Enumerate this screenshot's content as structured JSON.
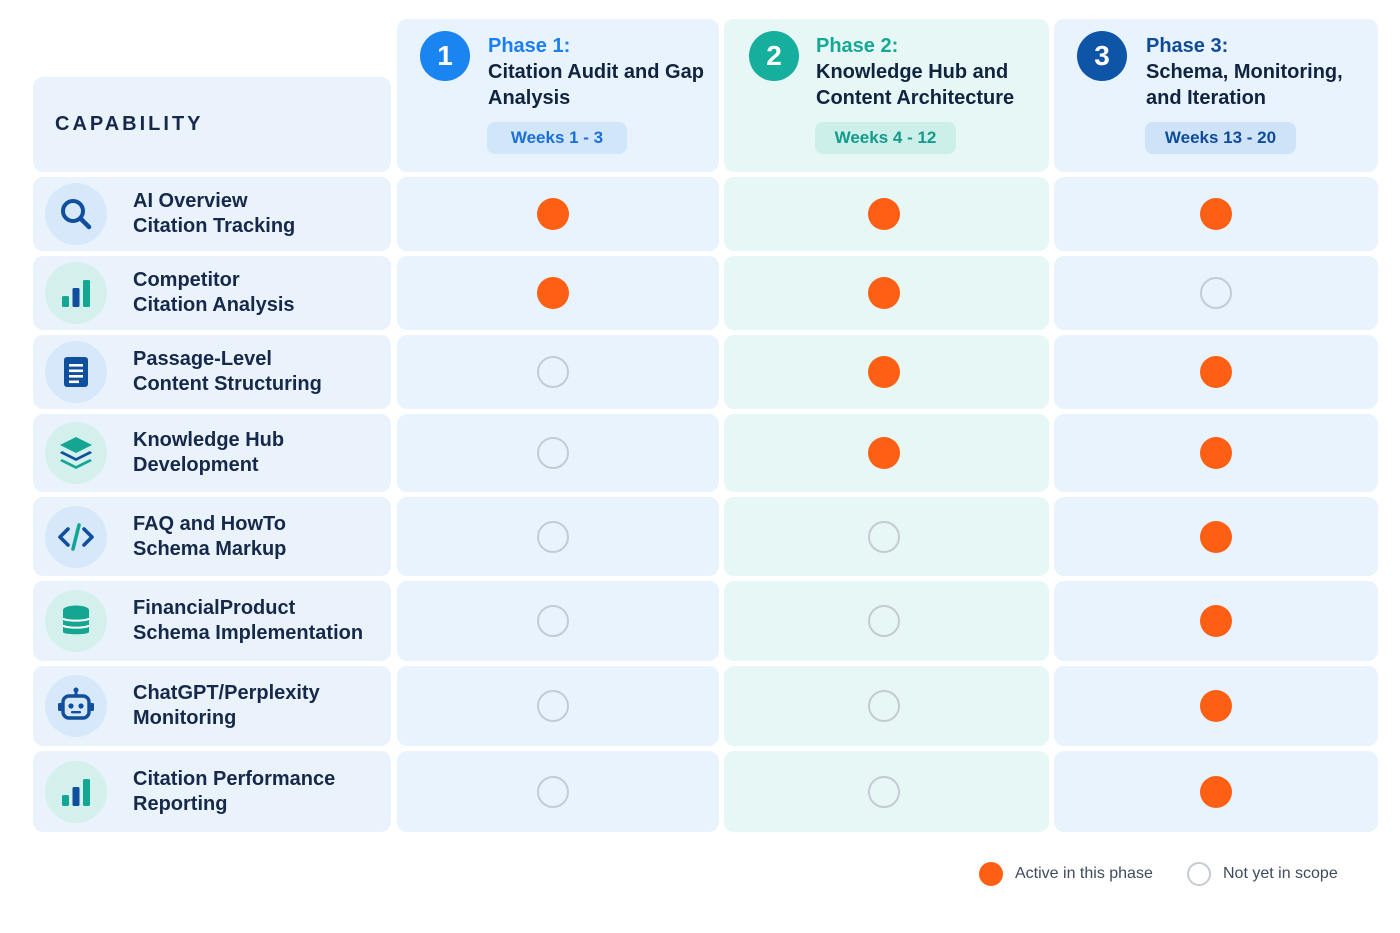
{
  "header": {
    "capability_label": "CAPABILITY"
  },
  "phases": [
    {
      "number": "1",
      "label": "Phase 1:",
      "title": "Citation Audit and Gap Analysis",
      "weeks": "Weeks 1 - 3",
      "accent": "#1a85f0",
      "label_color": "#1a7ff0",
      "weeks_bg": "#d2e6fa",
      "weeks_color": "#1b6fd8"
    },
    {
      "number": "2",
      "label": "Phase 2:",
      "title": "Knowledge Hub and Content Architecture",
      "weeks": "Weeks 4 - 12",
      "accent": "#16ae9c",
      "label_color": "#14a896",
      "weeks_bg": "#ccefe9",
      "weeks_color": "#139a8a"
    },
    {
      "number": "3",
      "label": "Phase 3:",
      "title": "Schema, Monitoring, and Iteration",
      "weeks": "Weeks 13 - 20",
      "accent": "#0e54a7",
      "label_color": "#0e4c9a",
      "weeks_bg": "#cfe3f8",
      "weeks_color": "#0e4c9a"
    }
  ],
  "capabilities": [
    {
      "line1": "AI Overview",
      "line2": "Citation Tracking",
      "icon": "search-icon",
      "status": [
        true,
        true,
        true
      ]
    },
    {
      "line1": "Competitor",
      "line2": "Citation Analysis",
      "icon": "bar-chart-icon",
      "status": [
        true,
        true,
        false
      ]
    },
    {
      "line1": "Passage-Level",
      "line2": "Content Structuring",
      "icon": "document-icon",
      "status": [
        false,
        true,
        true
      ]
    },
    {
      "line1": "Knowledge Hub",
      "line2": "Development",
      "icon": "layers-icon",
      "status": [
        false,
        true,
        true
      ]
    },
    {
      "line1": "FAQ and HowTo",
      "line2": "Schema Markup",
      "icon": "code-icon",
      "status": [
        false,
        false,
        true
      ]
    },
    {
      "line1": "FinancialProduct",
      "line2": "Schema Implementation",
      "icon": "database-icon",
      "status": [
        false,
        false,
        true
      ]
    },
    {
      "line1": "ChatGPT/Perplexity",
      "line2": "Monitoring",
      "icon": "robot-icon",
      "status": [
        false,
        false,
        true
      ]
    },
    {
      "line1": "Citation Performance",
      "line2": "Reporting",
      "icon": "bar-chart-icon",
      "status": [
        false,
        false,
        true
      ]
    }
  ],
  "legend": {
    "active_label": "Active in this phase",
    "inactive_label": "Not yet in scope"
  },
  "colors": {
    "active_dot": "#fd5f14",
    "inactive_dot_border": "#c4cbd3"
  }
}
